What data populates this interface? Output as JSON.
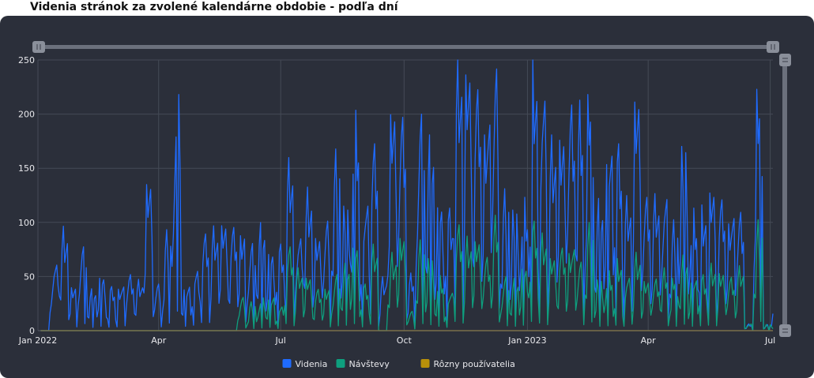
{
  "page": {
    "title": "Videnia stránok za zvolené kalendárne obdobie - podľa dní"
  },
  "chart_data": {
    "type": "line",
    "title": "Videnia stránok za zvolené kalendárne obdobie - podľa dní",
    "xlabel": "",
    "ylabel": "",
    "x_ticks": [
      "Jan 2022",
      "Apr",
      "Jul",
      "Oct",
      "Jan 2023",
      "Apr",
      "Jul"
    ],
    "x_tick_dates": [
      "2022-01-01",
      "2022-04-01",
      "2022-07-01",
      "2022-10-01",
      "2023-01-01",
      "2023-04-01",
      "2023-07-01"
    ],
    "y_ticks": [
      "0",
      "50",
      "100",
      "150",
      "200",
      "250"
    ],
    "xlim": [
      "2022-01-01",
      "2023-07-03"
    ],
    "ylim": [
      0,
      250
    ],
    "grid": true,
    "legend_position": "bottom-center",
    "x_dates_weekly": [
      "2022-01-03",
      "2022-01-10",
      "2022-01-17",
      "2022-01-24",
      "2022-01-31",
      "2022-02-07",
      "2022-02-14",
      "2022-02-21",
      "2022-02-28",
      "2022-03-07",
      "2022-03-14",
      "2022-03-21",
      "2022-03-28",
      "2022-04-04",
      "2022-04-11",
      "2022-04-18",
      "2022-04-25",
      "2022-05-02",
      "2022-05-09",
      "2022-05-16",
      "2022-05-23",
      "2022-05-30",
      "2022-06-06",
      "2022-06-13",
      "2022-06-20",
      "2022-06-27",
      "2022-07-04",
      "2022-07-11",
      "2022-07-18",
      "2022-07-25",
      "2022-08-01",
      "2022-08-08",
      "2022-08-15",
      "2022-08-22",
      "2022-08-29",
      "2022-09-05",
      "2022-09-12",
      "2022-09-19",
      "2022-09-26",
      "2022-10-03",
      "2022-10-10",
      "2022-10-17",
      "2022-10-24",
      "2022-10-31",
      "2022-11-07",
      "2022-11-14",
      "2022-11-21",
      "2022-11-28",
      "2022-12-05",
      "2022-12-12",
      "2022-12-19",
      "2022-12-26",
      "2023-01-02",
      "2023-01-09",
      "2023-01-16",
      "2023-01-23",
      "2023-01-30",
      "2023-02-06",
      "2023-02-13",
      "2023-02-20",
      "2023-02-27",
      "2023-03-06",
      "2023-03-13",
      "2023-03-20",
      "2023-03-27",
      "2023-04-03",
      "2023-04-10",
      "2023-04-17",
      "2023-04-24",
      "2023-05-01",
      "2023-05-08",
      "2023-05-15",
      "2023-05-22",
      "2023-05-29",
      "2023-06-05",
      "2023-06-12",
      "2023-06-19",
      "2023-06-26",
      "2023-07-03"
    ],
    "series": [
      {
        "name": "Videnia",
        "color": "#1f6bff",
        "values": [
          0,
          50,
          80,
          35,
          65,
          30,
          40,
          32,
          35,
          45,
          38,
          115,
          35,
          70,
          180,
          40,
          50,
          75,
          75,
          80,
          75,
          80,
          70,
          80,
          60,
          65,
          120,
          70,
          110,
          75,
          85,
          130,
          95,
          160,
          100,
          150,
          40,
          170,
          160,
          40,
          180,
          150,
          100,
          95,
          200,
          195,
          175,
          165,
          210,
          105,
          95,
          100,
          190,
          175,
          150,
          155,
          175,
          165,
          180,
          105,
          140,
          150,
          100,
          180,
          100,
          95,
          100,
          85,
          150,
          95,
          90,
          105,
          95,
          90,
          95,
          5,
          190,
          5,
          60
        ]
      },
      {
        "name": "Návštevy",
        "color": "#0e9f7e",
        "values": [
          0,
          0,
          0,
          0,
          0,
          0,
          0,
          0,
          0,
          0,
          0,
          0,
          0,
          0,
          0,
          0,
          0,
          0,
          0,
          0,
          0,
          25,
          20,
          25,
          30,
          20,
          65,
          45,
          40,
          30,
          35,
          45,
          50,
          65,
          35,
          60,
          0,
          60,
          75,
          15,
          65,
          55,
          40,
          30,
          85,
          70,
          70,
          55,
          80,
          45,
          40,
          50,
          85,
          70,
          55,
          60,
          65,
          55,
          80,
          40,
          45,
          50,
          40,
          60,
          40,
          40,
          45,
          40,
          60,
          40,
          45,
          50,
          45,
          40,
          45,
          5,
          85,
          5,
          5
        ]
      },
      {
        "name": "Rôzny používatelia",
        "color": "#b8900a",
        "values": [
          0,
          0,
          0,
          0,
          0,
          0,
          0,
          0,
          0,
          0,
          0,
          0,
          0,
          0,
          0,
          0,
          0,
          0,
          0,
          0,
          0,
          0,
          0,
          0,
          0,
          0,
          0,
          0,
          0,
          0,
          0,
          0,
          0,
          0,
          0,
          0,
          0,
          0,
          0,
          0,
          0,
          0,
          0,
          0,
          0,
          0,
          0,
          0,
          0,
          0,
          0,
          0,
          0,
          0,
          0,
          0,
          0,
          0,
          0,
          0,
          0,
          0,
          0,
          0,
          0,
          0,
          0,
          0,
          0,
          0,
          0,
          0,
          0,
          0,
          0,
          0,
          0,
          0,
          0
        ]
      }
    ]
  }
}
